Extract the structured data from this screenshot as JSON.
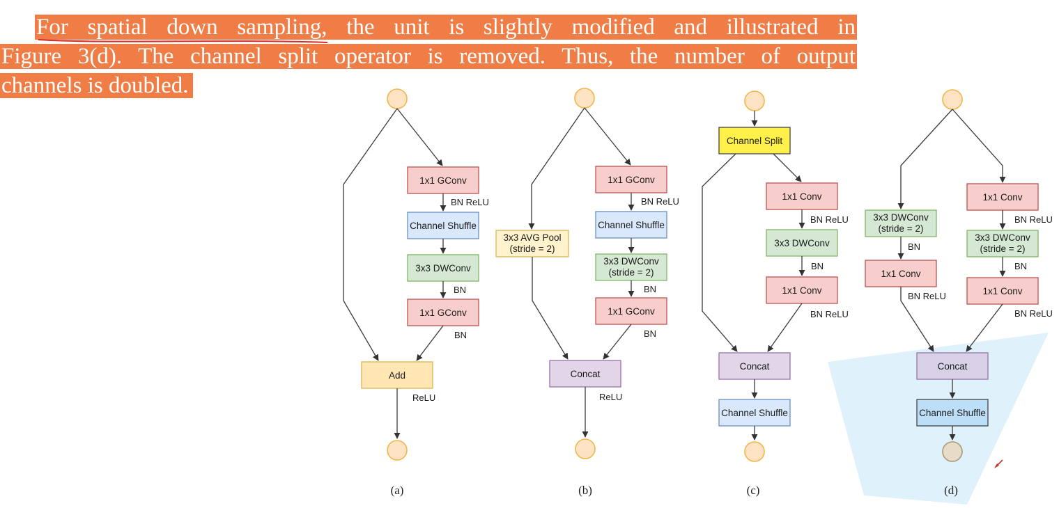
{
  "paragraph": {
    "line1": "For spatial down sampling, the unit is slightly modified and illustrated in",
    "line2": "Figure 3(d). The channel split operator is removed. Thus, the number of output",
    "line3": "channels is doubled."
  },
  "colors": {
    "highlight": "#f07d45",
    "underline": "#d9262a",
    "gconv": "#f8cecc",
    "shuffle": "#dae8fc",
    "dwconv": "#d5e8d4",
    "add": "#ffe6b3",
    "pool": "#fff2cc",
    "concat": "#e1d5e7",
    "split": "#fff04a",
    "annotation_fill": "#dceffb",
    "node": "#fde3c4"
  },
  "diagram_a": {
    "gconv1": "1x1 GConv",
    "note1": "BN ReLU",
    "shuffle": "Channel Shuffle",
    "dwconv": "3x3 DWConv",
    "note2": "BN",
    "gconv2": "1x1 GConv",
    "note3": "BN",
    "merge": "Add",
    "note4": "ReLU",
    "caption": "(a)"
  },
  "diagram_b": {
    "gconv1": "1x1 GConv",
    "note1": "BN ReLU",
    "shuffle": "Channel Shuffle",
    "pool_line1": "3x3 AVG Pool",
    "pool_line2": "(stride = 2)",
    "dw_line1": "3x3 DWConv",
    "dw_line2": "(stride = 2)",
    "note2": "BN",
    "gconv2": "1x1 GConv",
    "note3": "BN",
    "merge": "Concat",
    "note4": "ReLU",
    "caption": "(b)"
  },
  "diagram_c": {
    "split": "Channel Split",
    "conv1": "1x1 Conv",
    "note1": "BN ReLU",
    "dwconv": "3x3 DWConv",
    "note2": "BN",
    "conv2": "1x1 Conv",
    "note3": "BN ReLU",
    "merge": "Concat",
    "shuffle": "Channel Shuffle",
    "caption": "(c)"
  },
  "diagram_d": {
    "left_dw_line1": "3x3 DWConv",
    "left_dw_line2": "(stride = 2)",
    "left_note1": "BN",
    "left_conv": "1x1 Conv",
    "left_note2": "BN ReLU",
    "right_conv1": "1x1 Conv",
    "right_note1": "BN ReLU",
    "right_dw_line1": "3x3 DWConv",
    "right_dw_line2": "(stride = 2)",
    "right_note2": "BN",
    "right_conv2": "1x1 Conv",
    "right_note3": "BN ReLU",
    "merge": "Concat",
    "shuffle": "Channel Shuffle",
    "caption": "(d)"
  }
}
